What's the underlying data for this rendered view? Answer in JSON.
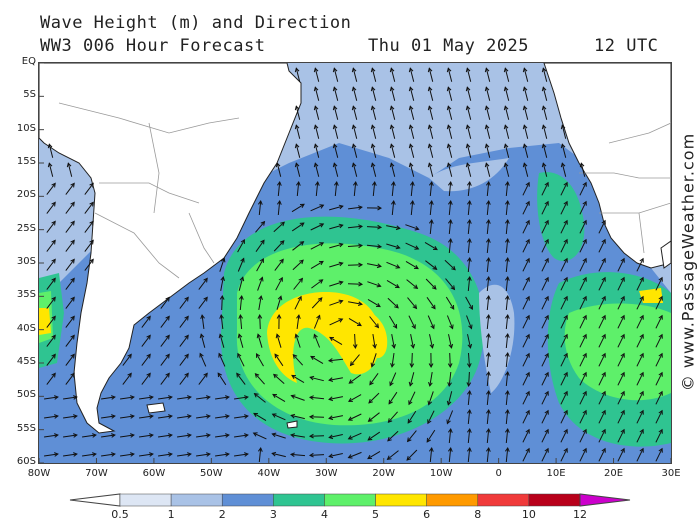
{
  "header": {
    "title": "Wave Height (m) and Direction",
    "model": "WW3 006 Hour Forecast",
    "date": "Thu 01 May 2025",
    "time": "12 UTC"
  },
  "credit": "© www.PassageWeather.com",
  "axes": {
    "lat_labels": [
      "EQ",
      "5S",
      "10S",
      "15S",
      "20S",
      "25S",
      "30S",
      "35S",
      "40S",
      "45S",
      "50S",
      "55S",
      "60S"
    ],
    "lon_labels": [
      "80W",
      "70W",
      "60W",
      "50W",
      "40W",
      "30W",
      "20W",
      "10W",
      "0",
      "10E",
      "20E",
      "30E"
    ],
    "lat_range": [
      0,
      -60
    ],
    "lon_range": [
      -80,
      30
    ]
  },
  "legend": {
    "unit": "m",
    "ticks": [
      "0.5",
      "1",
      "2",
      "3",
      "4",
      "5",
      "6",
      "8",
      "10",
      "12"
    ],
    "colors": [
      "#dde6f4",
      "#a9c2e6",
      "#5f8fd6",
      "#2fc491",
      "#5ef06a",
      "#ffe600",
      "#ff9a00",
      "#f03a3a",
      "#b8001a",
      "#cc00cc"
    ]
  },
  "map": {
    "land_color": "#ffffff",
    "border_color": "#9a9a9a",
    "ocean_base": "#a9c2e6",
    "wave_colors": {
      "light": "#a9c2e6",
      "med": "#5f8fd6",
      "teal": "#2fc491",
      "green": "#5ef06a",
      "yellow": "#ffe600",
      "orange": "#ff9a00"
    },
    "arrow_color": "#111111"
  }
}
